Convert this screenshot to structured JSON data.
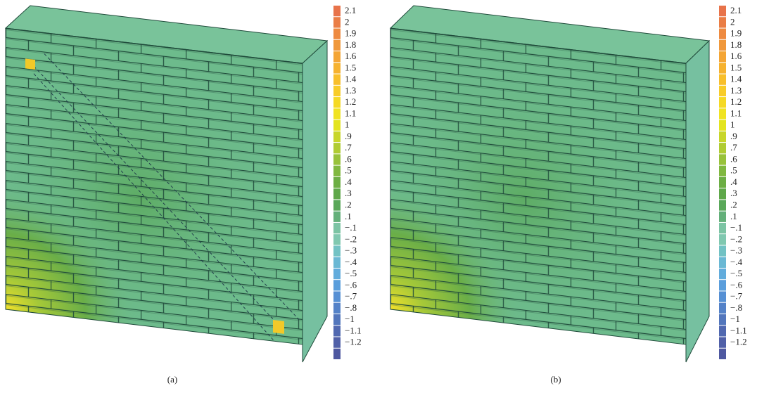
{
  "legend": [
    {
      "label": "2.1",
      "color": "#e8734a"
    },
    {
      "label": "2",
      "color": "#ea7d45"
    },
    {
      "label": "1.9",
      "color": "#ee8a40"
    },
    {
      "label": "1.8",
      "color": "#f0983b"
    },
    {
      "label": "1.6",
      "color": "#f4a535"
    },
    {
      "label": "1.5",
      "color": "#f6b22f"
    },
    {
      "label": "1.4",
      "color": "#f8bf2b"
    },
    {
      "label": "1.3",
      "color": "#f8cc28"
    },
    {
      "label": "1.2",
      "color": "#f5d924"
    },
    {
      "label": "1.1",
      "color": "#f0e322"
    },
    {
      "label": "1",
      "color": "#e3e41f"
    },
    {
      "label": ".9",
      "color": "#c8d62a"
    },
    {
      "label": ".7",
      "color": "#b0cc33"
    },
    {
      "label": ".6",
      "color": "#98c23a"
    },
    {
      "label": ".5",
      "color": "#80b83f"
    },
    {
      "label": ".4",
      "color": "#6cae44"
    },
    {
      "label": ".3",
      "color": "#5fa84a"
    },
    {
      "label": ".2",
      "color": "#5aa85a"
    },
    {
      "label": ".1",
      "color": "#64b07a"
    },
    {
      "label": "−.1",
      "color": "#7cc4a4"
    },
    {
      "label": "−.2",
      "color": "#80c8b0"
    },
    {
      "label": "−.3",
      "color": "#72c2c4"
    },
    {
      "label": "−.4",
      "color": "#6ab8d4"
    },
    {
      "label": "−.5",
      "color": "#62acdc"
    },
    {
      "label": "−.6",
      "color": "#5a9edc"
    },
    {
      "label": "−.7",
      "color": "#5690d4"
    },
    {
      "label": "−.8",
      "color": "#5482c8"
    },
    {
      "label": "−1",
      "color": "#5276bc"
    },
    {
      "label": "−1.1",
      "color": "#5068b0"
    },
    {
      "label": "−1.2",
      "color": "#5060a8"
    },
    {
      "label": null,
      "color": "#4e58a0"
    }
  ],
  "panels": [
    {
      "caption": "(a)"
    },
    {
      "caption": "(b)"
    }
  ]
}
